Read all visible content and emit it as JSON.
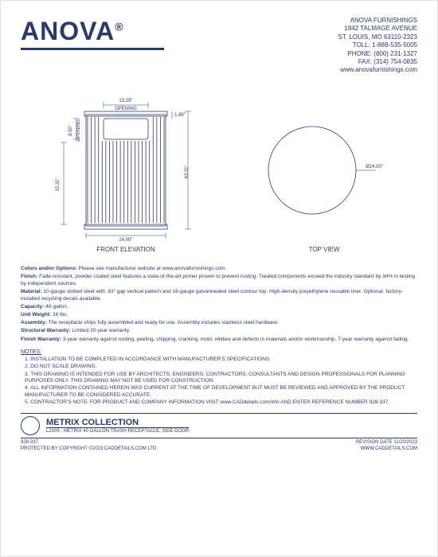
{
  "header": {
    "logo_text": "ANOVA",
    "company_name": "ANOVA FURNISHINGS",
    "address1": "1842 TALMAGE AVENUE",
    "address2": "ST. LOUIS, MO 63110-2323",
    "toll": "TOLL: 1-888-535-5005",
    "phone": "PHONE: (800) 231-1327",
    "fax": "FAX: (314) 754-0835",
    "website": "www.anovafurnishings.com"
  },
  "drawing": {
    "front_label": "FRONT ELEVATION",
    "top_label": "TOP VIEW",
    "dim_width": "24.00\"",
    "dim_height": "43.31\"",
    "dim_opening_w": "13.29\"",
    "dim_opening_label": "OPENING",
    "dim_opening_h": "8.00\"",
    "dim_slot_h": "32.31\"",
    "dim_lip": "1.88\"",
    "dim_diameter": "Ø24.00\"",
    "line_color": "#2a3a6b",
    "dim_color": "#2a3a6b",
    "slot_count": 22
  },
  "specs": {
    "colors_label": "Colors and/or Options:",
    "colors_text": " Please see manufacturer website at www.anovafurnishings.com.",
    "finish_label": "Finish:",
    "finish_text": " Fade-resistant, powder coated steel features a state-of-the-art primer proven to prevent rusting. Treated components exceed the industry standard by 34% in testing by independent sources.",
    "material_label": "Material:",
    "material_text": " 10-gauge slotted steel with .63\" gap vertical pattern and 16-gauge galvannealed steel contour top. High-density polyethylene reusable liner. Optional, factory-installed recycling decals available.",
    "capacity_label": "Capacity:",
    "capacity_text": " 40-gallon.",
    "weight_label": "Unit Weight:",
    "weight_text": " 26 lbs.",
    "assembly_label": "Assembly:",
    "assembly_text": " The receptacle ships fully assembled and ready for use. Assembly includes stainless steel hardware.",
    "struct_label": "Structural Warranty:",
    "struct_text": " Limited 20-year warranty.",
    "fin_warr_label": "Finish Warranty:",
    "fin_warr_text": " 3-year warranty against rusting, peeling, chipping, cracking, mold, mildew and defects in materials and/or workmanship. 7-year warranty against fading."
  },
  "notes": {
    "title": "NOTES:",
    "n1": "INSTALLATION TO BE COMPLETED IN ACCORDANCE WITH MANUFACTURER'S SPECIFICATIONS.",
    "n2": "DO NOT SCALE DRAWING.",
    "n3": "THIS DRAWING IS INTENDED FOR USE BY ARCHITECTS, ENGINEERS, CONTRACTORS, CONSULTANTS AND DESIGN PROFESSIONALS FOR PLANNING PURPOSES ONLY.  THIS DRAWING MAY NOT BE USED FOR CONSTRUCTION.",
    "n4": "ALL INFORMATION CONTAINED HEREIN WAS CURRENT AT THE TIME OF DEVELOPMENT BUT MUST BE REVIEWED AND APPROVED BY THE PRODUCT MANUFACTURER TO BE CONSIDERED ACCURATE.",
    "n5": "CONTRACTOR'S NOTE: FOR PRODUCT AND COMPANY INFORMATION VISIT www.CADdetails.com/info AND ENTER REFERENCE NUMBER 928-337."
  },
  "collection": {
    "name": "METRIX COLLECTION",
    "desc": "L2009 - METRIX 40 GALLON TRASH RECEPTACLE, SIDE DOOR"
  },
  "footer": {
    "ref": "928-337",
    "revision": "REVISION DATE 11/20/2023",
    "copyright": "PROTECTED BY COPYRIGHT ©2023 CADDETAILS.COM LTD.",
    "caddetails": "WWW.CADDETAILS.COM"
  }
}
